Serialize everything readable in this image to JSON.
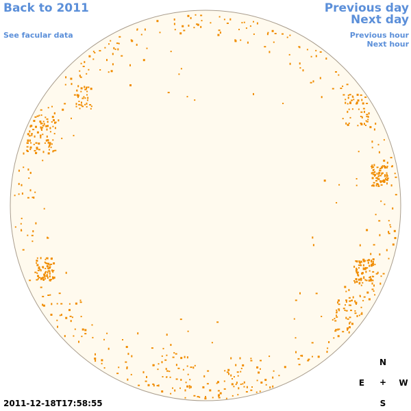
{
  "nav": {
    "back_label": "Back to 2011",
    "facular_label": "See facular data",
    "prev_day_label": "Previous day",
    "next_day_label": "Next day",
    "prev_hour_label": "Previous hour",
    "next_hour_label": "Next hour"
  },
  "timestamp": "2011-12-18T17:58:55",
  "compass": {
    "north": "N",
    "east": "E",
    "center": "+",
    "west": "W",
    "south": "S"
  },
  "colors": {
    "link": "#5b8fd9",
    "disk_fill": "#fffaee",
    "disk_outline": "#a89c8c",
    "facula": "#f08c00"
  }
}
